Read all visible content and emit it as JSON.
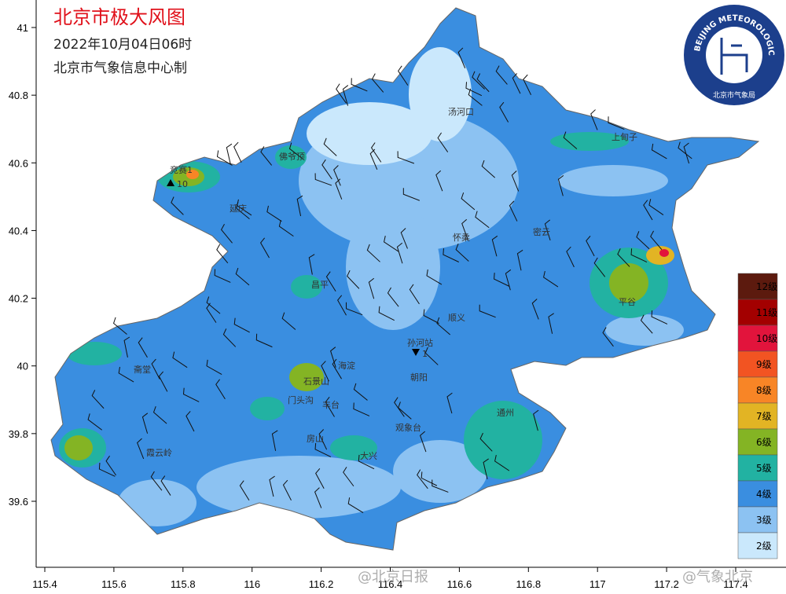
{
  "header": {
    "title": "北京市极大风图",
    "datetime": "2022年10月04日06时",
    "producer": "北京市气象信息中心制"
  },
  "logo": {
    "text": "BEIJING METEOROLOGICAL SERVICE",
    "chinese": "北京市气象局"
  },
  "axes": {
    "xticks": [
      115.4,
      115.6,
      115.8,
      116,
      116.2,
      116.4,
      116.6,
      116.8,
      117,
      117.2,
      117.4
    ],
    "yticks": [
      39.6,
      39.8,
      40,
      40.2,
      40.4,
      40.6,
      40.8,
      41
    ]
  },
  "legend": [
    {
      "label": "12级",
      "color": "#5c1a0e"
    },
    {
      "label": "11级",
      "color": "#a30000"
    },
    {
      "label": "10级",
      "color": "#e2143c"
    },
    {
      "label": "9级",
      "color": "#f25422"
    },
    {
      "label": "8级",
      "color": "#f88526"
    },
    {
      "label": "7级",
      "color": "#e2b424"
    },
    {
      "label": "6级",
      "color": "#84b424"
    },
    {
      "label": "5级",
      "color": "#22b2a2"
    },
    {
      "label": "4级",
      "color": "#3a8ee0"
    },
    {
      "label": "3级",
      "color": "#8cc2f2"
    },
    {
      "label": "2级",
      "color": "#cae8fc"
    }
  ],
  "stations": [
    {
      "name": "汤河口"
    },
    {
      "name": "上甸子"
    },
    {
      "name": "佛爷顶"
    },
    {
      "name": "竞赛1"
    },
    {
      "name": "延庆"
    },
    {
      "name": "怀柔"
    },
    {
      "name": "密云"
    },
    {
      "name": "昌平"
    },
    {
      "name": "平谷"
    },
    {
      "name": "顺义"
    },
    {
      "name": "斋堂"
    },
    {
      "name": "石景山"
    },
    {
      "name": "海淀"
    },
    {
      "name": "朝阳"
    },
    {
      "name": "门头沟"
    },
    {
      "name": "丰台"
    },
    {
      "name": "房山"
    },
    {
      "name": "大兴"
    },
    {
      "name": "观象台"
    },
    {
      "name": "通州"
    },
    {
      "name": "霞云岭"
    }
  ],
  "markers": [
    {
      "name": "10"
    },
    {
      "name": "孙河站"
    },
    {
      "name": "1"
    }
  ],
  "watermarks": [
    "@北京日报",
    "@气象北京"
  ]
}
